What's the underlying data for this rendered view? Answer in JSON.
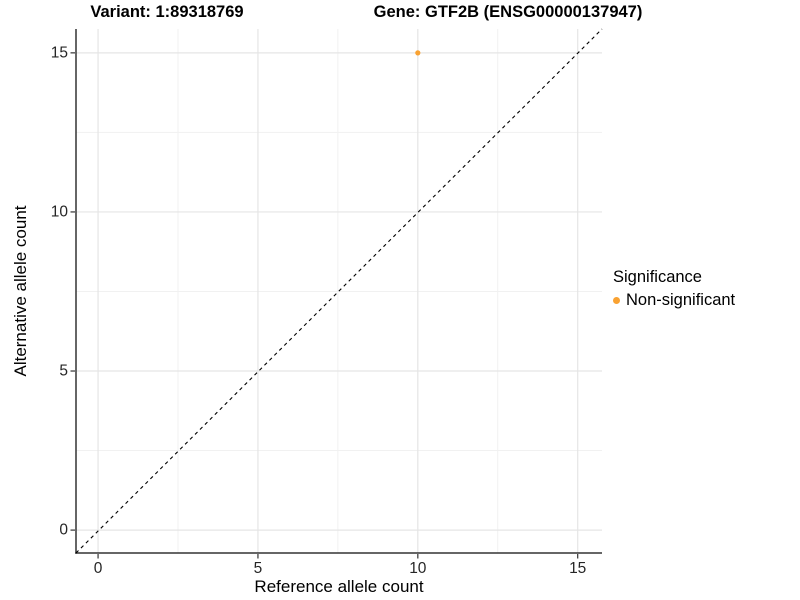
{
  "header": {
    "title_left": "Variant: 1:89318769",
    "title_right": "Gene: GTF2B (ENSG00000137947)"
  },
  "chart_data": {
    "type": "scatter",
    "titles": [
      "Variant: 1:89318769",
      "Gene: GTF2B (ENSG00000137947)"
    ],
    "xlabel": "Reference allele count",
    "ylabel": "Alternative allele count",
    "xlim": [
      -0.69,
      15.76
    ],
    "ylim": [
      -0.72,
      15.75
    ],
    "xticks": [
      0,
      5,
      10,
      15
    ],
    "yticks": [
      0,
      5,
      10,
      15
    ],
    "xminor": [
      2.5,
      7.5,
      12.5
    ],
    "yminor": [
      2.5,
      7.5,
      12.5
    ],
    "grid": true,
    "series": [
      {
        "name": "Non-significant",
        "color": "#F9A232",
        "points": [
          {
            "x": 10,
            "y": 15
          }
        ]
      }
    ],
    "reference_line": {
      "type": "identity y=x",
      "style": "dashed",
      "color": "#000000"
    },
    "legend": {
      "title": "Significance",
      "position": "right",
      "entries": [
        {
          "label": "Non-significant",
          "color": "#F9A232"
        }
      ]
    }
  },
  "colors": {
    "background": "#FFFFFF",
    "grid_major": "#E5E5E5",
    "grid_minor": "#F1F1F1",
    "axis_line": "#333333",
    "tick_mark": "#333333",
    "point": "#F9A232"
  }
}
